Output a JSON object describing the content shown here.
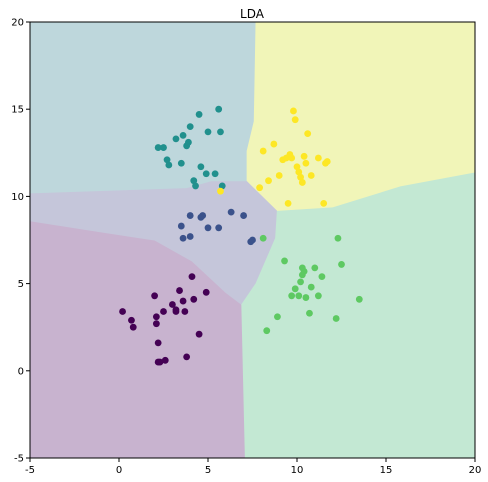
{
  "chart_data": {
    "type": "scatter",
    "title": "LDA",
    "xlabel": "",
    "ylabel": "",
    "xlim": [
      -5,
      20
    ],
    "ylim": [
      -5,
      20
    ],
    "xticks": [
      -5,
      0,
      5,
      10,
      15,
      20
    ],
    "yticks": [
      -5,
      0,
      5,
      10,
      15,
      20
    ],
    "grid": false,
    "legend": "none",
    "regions": [
      {
        "class": 0,
        "color": "#c8b3cf",
        "polygon": [
          [
            -5,
            -5
          ],
          [
            7.1,
            -5
          ],
          [
            6.9,
            3.8
          ],
          [
            6,
            4.5
          ],
          [
            4.1,
            6.3
          ],
          [
            2,
            7.5
          ],
          [
            -0.6,
            7.9
          ],
          [
            -5,
            8.6
          ]
        ]
      },
      {
        "class": 1,
        "color": "#c5c6da",
        "polygon": [
          [
            -5,
            8.6
          ],
          [
            -0.6,
            7.9
          ],
          [
            2,
            7.5
          ],
          [
            4.1,
            6.3
          ],
          [
            6,
            4.5
          ],
          [
            6.9,
            3.8
          ],
          [
            7.7,
            5
          ],
          [
            8.8,
            7.6
          ],
          [
            8.9,
            9.2
          ],
          [
            7.2,
            10.9
          ],
          [
            6.5,
            10.9
          ],
          [
            5.2,
            10.9
          ],
          [
            3.8,
            10.5
          ],
          [
            -5,
            10.2
          ]
        ]
      },
      {
        "class": 2,
        "color": "#bed7dc",
        "polygon": [
          [
            -5,
            10.2
          ],
          [
            3.8,
            10.5
          ],
          [
            5.2,
            10.9
          ],
          [
            6.5,
            10.9
          ],
          [
            7.2,
            10.9
          ],
          [
            7.2,
            12.6
          ],
          [
            7.6,
            14.3
          ],
          [
            7.7,
            20
          ],
          [
            -5,
            20
          ]
        ]
      },
      {
        "class": 3,
        "color": "#c3e8d3",
        "polygon": [
          [
            7.1,
            -5
          ],
          [
            20,
            -5
          ],
          [
            20,
            11.4
          ],
          [
            15.8,
            10.6
          ],
          [
            12,
            9.4
          ],
          [
            8.9,
            9.2
          ],
          [
            8.8,
            7.6
          ],
          [
            7.7,
            5
          ],
          [
            6.9,
            3.8
          ]
        ]
      },
      {
        "class": 4,
        "color": "#f1f5b8",
        "polygon": [
          [
            7.7,
            20
          ],
          [
            20,
            20
          ],
          [
            20,
            11.4
          ],
          [
            15.8,
            10.6
          ],
          [
            12,
            9.4
          ],
          [
            8.9,
            9.2
          ],
          [
            7.2,
            10.9
          ],
          [
            7.2,
            12.6
          ],
          [
            7.6,
            14.3
          ]
        ]
      }
    ],
    "series": [
      {
        "class": 0,
        "color": "#440154",
        "x": [
          0.2,
          0.7,
          0.8,
          2.0,
          2.1,
          2.1,
          2.2,
          2.2,
          2.3,
          2.5,
          2.6,
          3.0,
          3.2,
          3.2,
          3.4,
          3.6,
          3.7,
          3.8,
          4.1,
          4.2,
          4.5,
          4.9
        ],
        "y": [
          3.4,
          2.9,
          2.5,
          4.3,
          3.1,
          2.7,
          0.5,
          1.6,
          0.5,
          3.4,
          0.6,
          3.8,
          3.4,
          3.5,
          4.6,
          4.0,
          3.4,
          0.8,
          5.4,
          4.1,
          2.1,
          4.5
        ]
      },
      {
        "class": 1,
        "color": "#3b528b",
        "x": [
          3.5,
          3.6,
          4.0,
          4.0,
          4.6,
          4.7,
          5.0,
          5.6,
          6.3,
          7.0,
          7.4,
          7.5
        ],
        "y": [
          8.3,
          7.6,
          8.9,
          7.7,
          8.8,
          8.9,
          8.2,
          8.2,
          9.1,
          8.9,
          7.4,
          7.5
        ]
      },
      {
        "class": 2,
        "color": "#21908d",
        "x": [
          2.2,
          2.5,
          2.7,
          2.8,
          3.2,
          3.5,
          3.6,
          3.8,
          3.9,
          4.0,
          4.2,
          4.3,
          4.5,
          4.6,
          4.9,
          5.0,
          5.4,
          5.6,
          5.7,
          5.8
        ],
        "y": [
          12.8,
          12.8,
          12.1,
          11.8,
          13.3,
          11.9,
          13.5,
          12.9,
          13.1,
          14.0,
          10.9,
          10.6,
          14.7,
          11.7,
          11.3,
          13.7,
          11.3,
          15.0,
          13.7,
          10.6
        ]
      },
      {
        "class": 3,
        "color": "#5ec962",
        "x": [
          8.1,
          8.3,
          8.9,
          9.3,
          9.7,
          9.9,
          10.1,
          10.2,
          10.3,
          10.3,
          10.4,
          10.5,
          10.7,
          10.8,
          11.0,
          11.2,
          11.4,
          12.2,
          12.3,
          12.5,
          13.5
        ],
        "y": [
          7.6,
          2.3,
          3.1,
          6.3,
          4.3,
          4.7,
          4.3,
          5.1,
          5.5,
          5.9,
          5.7,
          4.2,
          3.3,
          4.8,
          5.9,
          4.3,
          5.4,
          3.0,
          7.6,
          6.1,
          4.1
        ]
      },
      {
        "class": 4,
        "color": "#fde725",
        "x": [
          5.7,
          7.9,
          8.1,
          8.4,
          8.7,
          9.0,
          9.2,
          9.4,
          9.5,
          9.6,
          9.7,
          9.8,
          9.9,
          10.0,
          10.1,
          10.2,
          10.3,
          10.4,
          10.5,
          10.6,
          10.8,
          11.2,
          11.5,
          11.6,
          11.7
        ],
        "y": [
          10.3,
          10.5,
          12.6,
          10.9,
          13.0,
          11.2,
          12.1,
          12.2,
          9.6,
          12.4,
          12.2,
          14.9,
          14.4,
          11.7,
          11.4,
          11.1,
          10.8,
          12.3,
          11.9,
          13.6,
          11.2,
          12.2,
          9.6,
          11.9,
          12.0
        ]
      }
    ]
  }
}
